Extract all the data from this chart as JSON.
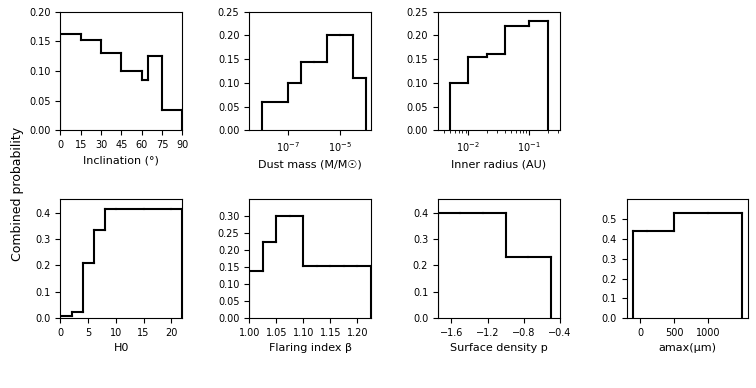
{
  "inclination": {
    "edges": [
      0,
      15,
      30,
      45,
      60,
      65,
      75,
      90
    ],
    "values": [
      0.162,
      0.152,
      0.13,
      0.1,
      0.085,
      0.125,
      0.035
    ],
    "xlabel": "Inclination (°)",
    "xlim": [
      0,
      90
    ],
    "ylim": [
      0,
      0.2
    ],
    "yticks": [
      0.0,
      0.05,
      0.1,
      0.15,
      0.2
    ],
    "xticks": [
      0,
      15,
      30,
      45,
      60,
      75,
      90
    ]
  },
  "dust_mass": {
    "log_edges": [
      -8,
      -7,
      -6.5,
      -6,
      -5.5,
      -5,
      -4.5,
      -4
    ],
    "values": [
      0.06,
      0.1,
      0.145,
      0.145,
      0.2,
      0.2,
      0.11
    ],
    "xlabel": "Dust mass (M/M☉)",
    "xlim_log": [
      -8.5,
      -3.8
    ],
    "ylim": [
      0,
      0.25
    ],
    "yticks": [
      0.0,
      0.05,
      0.1,
      0.15,
      0.2,
      0.25
    ]
  },
  "inner_radius": {
    "log_edges": [
      -2.3,
      -2.0,
      -1.7,
      -1.4,
      -1.0,
      -0.7
    ],
    "values": [
      0.1,
      0.155,
      0.16,
      0.22,
      0.23
    ],
    "xlabel": "Inner radius (AU)",
    "xlim_log": [
      -2.5,
      -0.5
    ],
    "ylim": [
      0,
      0.25
    ],
    "yticks": [
      0.0,
      0.05,
      0.1,
      0.15,
      0.2,
      0.25
    ]
  },
  "H0": {
    "edges": [
      0,
      2,
      4,
      6,
      8,
      10,
      15,
      20,
      22
    ],
    "values": [
      0.01,
      0.025,
      0.21,
      0.335,
      0.415,
      0.415,
      0.415,
      0.415
    ],
    "xlabel": "H0",
    "xlim": [
      0,
      22
    ],
    "ylim": [
      0,
      0.45
    ],
    "yticks": [
      0.0,
      0.1,
      0.2,
      0.3,
      0.4
    ],
    "xticks": [
      0,
      5,
      10,
      15,
      20
    ]
  },
  "flaring": {
    "edges": [
      1.0,
      1.025,
      1.05,
      1.075,
      1.1,
      1.125,
      1.15,
      1.175,
      1.2,
      1.225
    ],
    "values": [
      0.14,
      0.225,
      0.3,
      0.3,
      0.155,
      0.155,
      0.155,
      0.155,
      0.155
    ],
    "xlabel": "Flaring index β",
    "xlim": [
      1.0,
      1.225
    ],
    "ylim": [
      0,
      0.35
    ],
    "yticks": [
      0.0,
      0.05,
      0.1,
      0.15,
      0.2,
      0.25,
      0.3
    ],
    "xticks": [
      1.0,
      1.05,
      1.1,
      1.15,
      1.2
    ]
  },
  "surface_density": {
    "edges": [
      -1.75,
      -1.5,
      -1.25,
      -1.0,
      -0.75,
      -0.5
    ],
    "values": [
      0.4,
      0.4,
      0.4,
      0.23,
      0.23
    ],
    "xlabel": "Surface density p",
    "xlim": [
      -1.75,
      -0.4
    ],
    "ylim": [
      0,
      0.45
    ],
    "yticks": [
      0.0,
      0.1,
      0.2,
      0.3,
      0.4
    ],
    "xticks": [
      -1.6,
      -1.2,
      -0.8,
      -0.4
    ]
  },
  "amax": {
    "edges": [
      -100,
      100,
      500,
      1000,
      1500
    ],
    "values": [
      0.44,
      0.44,
      0.53,
      0.53
    ],
    "xlabel": "amax(μm)",
    "xlim": [
      -200,
      1600
    ],
    "ylim": [
      0,
      0.6
    ],
    "yticks": [
      0.0,
      0.1,
      0.2,
      0.3,
      0.4,
      0.5
    ],
    "xticks": [
      0,
      500,
      1000
    ]
  }
}
